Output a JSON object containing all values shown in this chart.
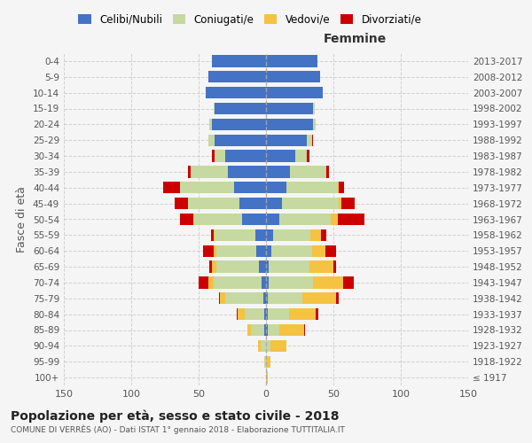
{
  "age_groups": [
    "100+",
    "95-99",
    "90-94",
    "85-89",
    "80-84",
    "75-79",
    "70-74",
    "65-69",
    "60-64",
    "55-59",
    "50-54",
    "45-49",
    "40-44",
    "35-39",
    "30-34",
    "25-29",
    "20-24",
    "15-19",
    "10-14",
    "5-9",
    "0-4"
  ],
  "birth_years": [
    "≤ 1917",
    "1918-1922",
    "1923-1927",
    "1928-1932",
    "1933-1937",
    "1938-1942",
    "1943-1947",
    "1948-1952",
    "1953-1957",
    "1958-1962",
    "1963-1967",
    "1968-1972",
    "1973-1977",
    "1978-1982",
    "1983-1987",
    "1988-1992",
    "1993-1997",
    "1998-2002",
    "2003-2007",
    "2008-2012",
    "2013-2017"
  ],
  "males": {
    "celibi": [
      0,
      0,
      0,
      1,
      1,
      2,
      3,
      5,
      7,
      8,
      18,
      20,
      24,
      28,
      30,
      38,
      40,
      38,
      45,
      43,
      40
    ],
    "coniugati": [
      0,
      1,
      4,
      10,
      15,
      28,
      36,
      32,
      30,
      30,
      35,
      38,
      40,
      28,
      8,
      5,
      2,
      1,
      0,
      0,
      0
    ],
    "vedovi": [
      0,
      0,
      2,
      3,
      5,
      4,
      4,
      3,
      2,
      1,
      1,
      0,
      0,
      0,
      0,
      0,
      0,
      0,
      0,
      0,
      0
    ],
    "divorziati": [
      0,
      0,
      0,
      0,
      1,
      1,
      7,
      2,
      8,
      2,
      10,
      10,
      12,
      2,
      2,
      0,
      0,
      0,
      0,
      0,
      0
    ]
  },
  "females": {
    "nubili": [
      0,
      0,
      0,
      1,
      1,
      1,
      2,
      2,
      4,
      5,
      10,
      12,
      15,
      18,
      22,
      30,
      35,
      35,
      42,
      40,
      38
    ],
    "coniugate": [
      0,
      0,
      3,
      9,
      16,
      26,
      33,
      30,
      30,
      28,
      38,
      42,
      38,
      26,
      8,
      4,
      2,
      1,
      0,
      0,
      0
    ],
    "vedove": [
      1,
      3,
      12,
      18,
      20,
      25,
      22,
      18,
      10,
      8,
      5,
      2,
      1,
      1,
      0,
      0,
      0,
      0,
      0,
      0,
      0
    ],
    "divorziate": [
      0,
      0,
      0,
      1,
      2,
      2,
      8,
      2,
      8,
      4,
      20,
      10,
      4,
      2,
      2,
      1,
      0,
      0,
      0,
      0,
      0
    ]
  },
  "colors": {
    "celibi": "#4472c4",
    "coniugati": "#c5d9a0",
    "vedovi": "#f5c242",
    "divorziati": "#cc0000"
  },
  "xlim": 150,
  "title": "Popolazione per età, sesso e stato civile - 2018",
  "subtitle": "COMUNE DI VERRÈS (AO) - Dati ISTAT 1° gennaio 2018 - Elaborazione TUTTITALIA.IT",
  "ylabel_left": "Fasce di età",
  "xlabel_right": "Femmine",
  "bg_color": "#f5f5f5",
  "grid_color": "#cccccc"
}
